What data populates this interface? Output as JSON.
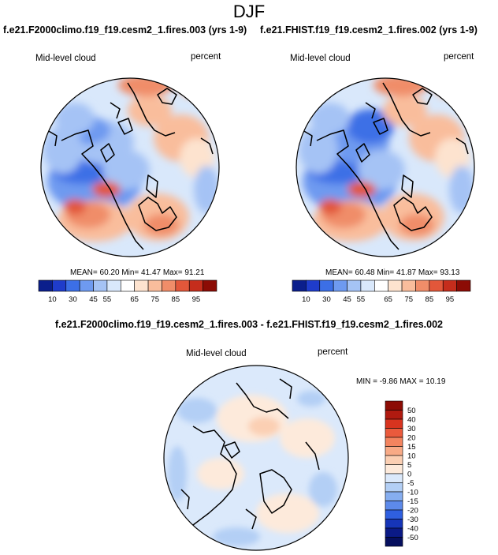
{
  "header": {
    "season": "DJF"
  },
  "panels": [
    {
      "title": "f.e21.F2000climo.f19_f19.cesm2_1.fires.003 (yrs 1-9)",
      "variable": "Mid-level cloud",
      "units": "percent",
      "stats": "MEAN=  60.20  Min=  41.47  Max=  91.21"
    },
    {
      "title": "f.e21.FHIST.f19_f19.cesm2_1.fires.002 (yrs 1-9)",
      "variable": "Mid-level cloud",
      "units": "percent",
      "stats": "MEAN=  60.48  Min=  41.87  Max=  93.13"
    }
  ],
  "difference": {
    "title": "f.e21.F2000climo.f19_f19.cesm2_1.fires.003 - f.e21.FHIST.f19_f19.cesm2_1.fires.002",
    "variable": "Mid-level cloud",
    "units": "percent",
    "stats": "MIN =  -9.86 MAX =  10.19"
  },
  "chart_data": [
    {
      "type": "heatmap",
      "projection": "north polar stereographic",
      "title": "f.e21.F2000climo.f19_f19.cesm2_1.fires.003 (yrs 1-9)",
      "variable": "Mid-level cloud",
      "units": "percent",
      "mean": 60.2,
      "min": 41.47,
      "max": 91.21,
      "colorbar": {
        "orientation": "horizontal",
        "tick_labels": [
          "10",
          "30",
          "45",
          "55",
          "65",
          "75",
          "85",
          "95"
        ],
        "colors": [
          "#0b1f8c",
          "#1f3ccb",
          "#3c6fe6",
          "#6e9af0",
          "#a5c3f5",
          "#d9e8fb",
          "#ffffff",
          "#fde3cf",
          "#f9bd9c",
          "#f08d69",
          "#e2573a",
          "#c52d1c",
          "#8c0c05"
        ]
      }
    },
    {
      "type": "heatmap",
      "projection": "north polar stereographic",
      "title": "f.e21.FHIST.f19_f19.cesm2_1.fires.002 (yrs 1-9)",
      "variable": "Mid-level cloud",
      "units": "percent",
      "mean": 60.48,
      "min": 41.87,
      "max": 93.13,
      "colorbar": {
        "orientation": "horizontal",
        "tick_labels": [
          "10",
          "30",
          "45",
          "55",
          "65",
          "75",
          "85",
          "95"
        ],
        "colors": [
          "#0b1f8c",
          "#1f3ccb",
          "#3c6fe6",
          "#6e9af0",
          "#a5c3f5",
          "#d9e8fb",
          "#ffffff",
          "#fde3cf",
          "#f9bd9c",
          "#f08d69",
          "#e2573a",
          "#c52d1c",
          "#8c0c05"
        ]
      }
    },
    {
      "type": "heatmap",
      "projection": "north polar stereographic",
      "title": "f.e21.F2000climo.f19_f19.cesm2_1.fires.003 - f.e21.FHIST.f19_f19.cesm2_1.fires.002",
      "variable": "Mid-level cloud",
      "units": "percent",
      "min": -9.86,
      "max": 10.19,
      "colorbar": {
        "orientation": "vertical",
        "tick_labels": [
          "50",
          "40",
          "30",
          "20",
          "15",
          "10",
          "5",
          "0",
          "-5",
          "-10",
          "-15",
          "-20",
          "-30",
          "-40",
          "-50"
        ],
        "colors": [
          "#8c0c05",
          "#b01a10",
          "#d8341f",
          "#ea5a3c",
          "#f3845f",
          "#f8aa86",
          "#fbcfb3",
          "#fdeadb",
          "#dbe9fb",
          "#b3cff5",
          "#86aef0",
          "#5d8aea",
          "#2f5fe0",
          "#1635b8",
          "#0b1a86",
          "#060f5e"
        ]
      }
    }
  ]
}
